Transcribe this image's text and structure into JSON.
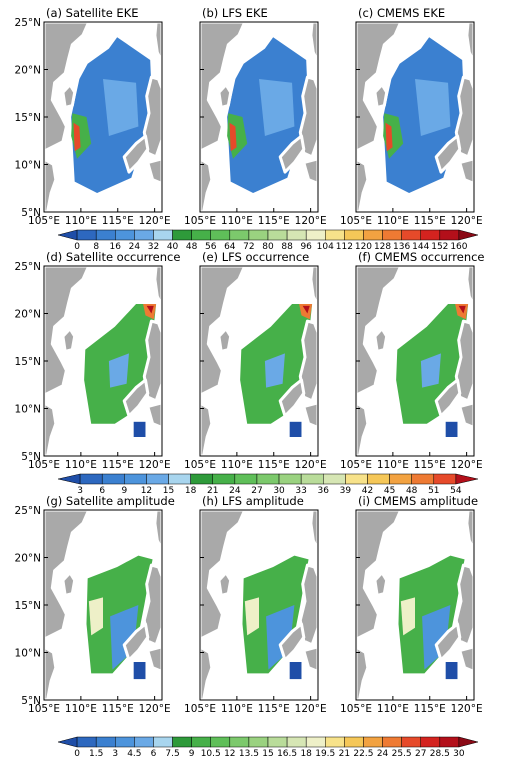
{
  "figure": {
    "map_extent": {
      "lon": [
        105,
        121
      ],
      "lat": [
        5,
        25
      ]
    },
    "land_color": "#a9a9a9",
    "coast_color": "#ffffff"
  },
  "rows": [
    {
      "row_id": "eke",
      "panels": [
        {
          "label": "(a) Satellite EKE"
        },
        {
          "label": "(b) LFS EKE"
        },
        {
          "label": "(c) CMEMS EKE"
        }
      ],
      "colorbar": {
        "ticks": [
          "0",
          "8",
          "16",
          "24",
          "32",
          "40",
          "48",
          "56",
          "64",
          "72",
          "80",
          "88",
          "96",
          "104",
          "112",
          "120",
          "128",
          "136",
          "144",
          "152",
          "160"
        ],
        "colors": [
          "#1f4ea8",
          "#2d68bf",
          "#3b80d0",
          "#4d94dc",
          "#6aa9e6",
          "#a8d5ee",
          "#2e9a3a",
          "#46b049",
          "#5fbf59",
          "#7cc96c",
          "#9ad280",
          "#b9dc9a",
          "#d6e6b4",
          "#eef0c8",
          "#f7e28a",
          "#f5c758",
          "#f2a241",
          "#ee7a33",
          "#e64a2a",
          "#d4231f",
          "#b30f1a",
          "#8b0a16"
        ],
        "ylim": [
          0,
          160
        ]
      }
    },
    {
      "row_id": "occurrence",
      "panels": [
        {
          "label": "(d) Satellite occurrence"
        },
        {
          "label": "(e) LFS occurrence"
        },
        {
          "label": "(f) CMEMS occurrence"
        }
      ],
      "colorbar": {
        "ticks": [
          "3",
          "6",
          "9",
          "12",
          "15",
          "18",
          "21",
          "24",
          "27",
          "30",
          "33",
          "36",
          "39",
          "42",
          "45",
          "48",
          "51",
          "54"
        ],
        "colors": [
          "#1f4ea8",
          "#2d68bf",
          "#3b80d0",
          "#4d94dc",
          "#6aa9e6",
          "#a8d5ee",
          "#2e9a3a",
          "#46b049",
          "#5fbf59",
          "#7cc96c",
          "#9ad280",
          "#b9dc9a",
          "#d6e6b4",
          "#f7e28a",
          "#f5c758",
          "#f2a241",
          "#ee7a33",
          "#e64a2a",
          "#b30f1a"
        ],
        "ylim": [
          0,
          57
        ]
      }
    },
    {
      "row_id": "amplitude",
      "panels": [
        {
          "label": "(g) Satellite amplitude"
        },
        {
          "label": "(h) LFS amplitude"
        },
        {
          "label": "(i) CMEMS amplitude"
        }
      ],
      "colorbar": {
        "ticks": [
          "0",
          "1.5",
          "3",
          "4.5",
          "6",
          "7.5",
          "9",
          "10.5",
          "12",
          "13.5",
          "15",
          "16.5",
          "18",
          "19.5",
          "21",
          "22.5",
          "24",
          "25.5",
          "27",
          "28.5",
          "30"
        ],
        "colors": [
          "#1f4ea8",
          "#2d68bf",
          "#3b80d0",
          "#4d94dc",
          "#6aa9e6",
          "#a8d5ee",
          "#2e9a3a",
          "#46b049",
          "#5fbf59",
          "#7cc96c",
          "#9ad280",
          "#b9dc9a",
          "#d6e6b4",
          "#eef0c8",
          "#f7e28a",
          "#f5c758",
          "#f2a241",
          "#ee7a33",
          "#e64a2a",
          "#d4231f",
          "#b30f1a",
          "#8b0a16"
        ],
        "ylim": [
          0,
          30
        ]
      }
    }
  ],
  "axes": {
    "y_ticks": [
      "5°N",
      "10°N",
      "15°N",
      "20°N",
      "25°N"
    ],
    "x_ticks": [
      "105°E",
      "110°E",
      "115°E",
      "120°E"
    ]
  }
}
